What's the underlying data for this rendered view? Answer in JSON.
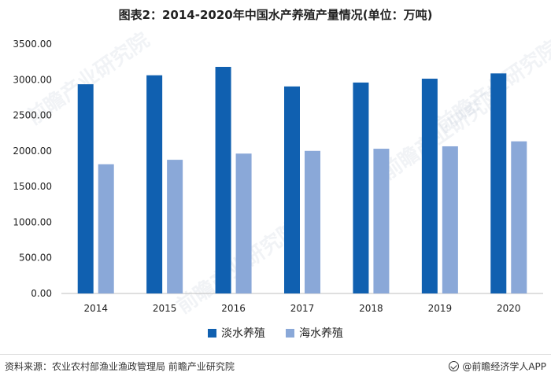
{
  "chart_data": {
    "type": "bar",
    "title": "图表2：2014-2020年中国水产养殖产量情况(单位：万吨)",
    "categories": [
      "2014",
      "2015",
      "2016",
      "2017",
      "2018",
      "2019",
      "2020"
    ],
    "series": [
      {
        "name": "淡水养殖",
        "color": "#1060b0",
        "values": [
          2936,
          3062,
          3180,
          2905,
          2960,
          3014,
          3088
        ]
      },
      {
        "name": "海水养殖",
        "color": "#8aa8d8",
        "values": [
          1813,
          1876,
          1963,
          2001,
          2031,
          2065,
          2135
        ]
      }
    ],
    "ylim": [
      0,
      3500
    ],
    "yticks": [
      "0.00",
      "500.00",
      "1000.00",
      "1500.00",
      "2000.00",
      "2500.00",
      "3000.00",
      "3500.00"
    ],
    "grid": false,
    "legend_position": "bottom-center"
  },
  "footer": {
    "source": "资料来源：农业农村部渔业渔政管理局 前瞻产业研究院",
    "brand": "@前瞻经济学人APP"
  },
  "watermark": "前瞻产业研究院"
}
